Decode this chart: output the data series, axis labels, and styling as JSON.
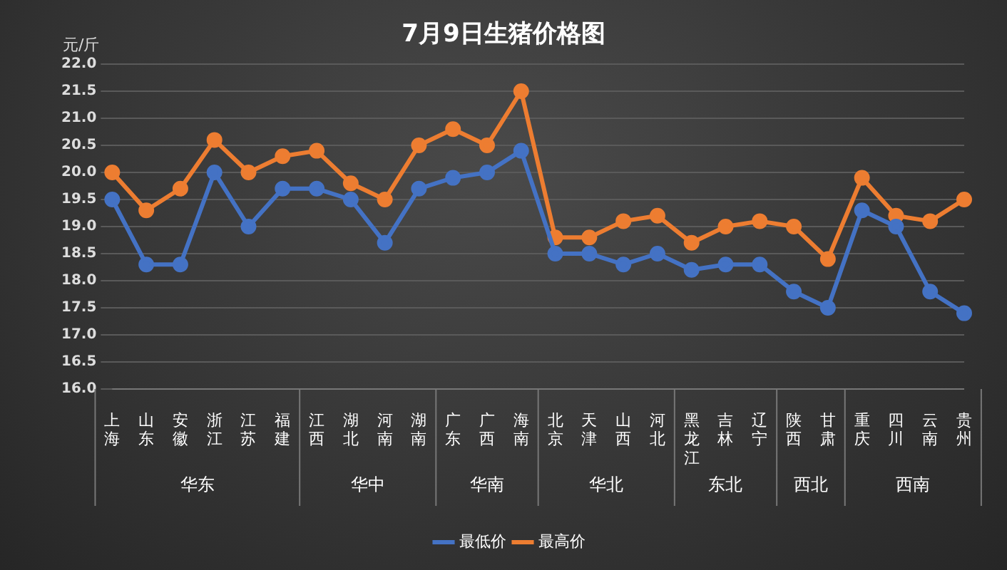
{
  "chart_data": {
    "type": "line",
    "title": "7月9日生猪价格图",
    "ylabel": "元/斤",
    "categories": [
      "上海",
      "山东",
      "安徽",
      "浙江",
      "江苏",
      "福建",
      "江西",
      "湖北",
      "河南",
      "湖南",
      "广东",
      "广西",
      "海南",
      "北京",
      "天津",
      "山西",
      "河北",
      "黑龙江",
      "吉林",
      "辽宁",
      "陕西",
      "甘肃",
      "重庆",
      "四川",
      "云南",
      "贵州"
    ],
    "series": [
      {
        "name": "最低价",
        "color": "#4472c4",
        "values": [
          19.5,
          18.3,
          18.3,
          20.0,
          19.0,
          19.7,
          19.7,
          19.5,
          18.7,
          19.7,
          19.9,
          20.0,
          20.4,
          18.5,
          18.5,
          18.3,
          18.5,
          18.2,
          18.3,
          18.3,
          17.8,
          17.5,
          19.3,
          19.0,
          17.8,
          17.4
        ]
      },
      {
        "name": "最高价",
        "color": "#ed7d31",
        "values": [
          20.0,
          19.3,
          19.7,
          20.6,
          20.0,
          20.3,
          20.4,
          19.8,
          19.5,
          20.5,
          20.8,
          20.5,
          21.5,
          18.8,
          18.8,
          19.1,
          19.2,
          18.7,
          19.0,
          19.1,
          19.0,
          18.4,
          19.9,
          19.2,
          19.1,
          19.5
        ]
      }
    ],
    "ylim": [
      16.0,
      22.0
    ],
    "yticks": [
      {
        "value": 16,
        "label": "16.0"
      },
      {
        "value": 16.5,
        "label": "16.5"
      },
      {
        "value": 17,
        "label": "17.0"
      },
      {
        "value": 17.5,
        "label": "17.5"
      },
      {
        "value": 18,
        "label": "18.0"
      },
      {
        "value": 18.5,
        "label": "18.5"
      },
      {
        "value": 19,
        "label": "19.0"
      },
      {
        "value": 19.5,
        "label": "19.5"
      },
      {
        "value": 20,
        "label": "20.0"
      },
      {
        "value": 20.5,
        "label": "20.5"
      },
      {
        "value": 21,
        "label": "21.0"
      },
      {
        "value": 21.5,
        "label": "21.5"
      },
      {
        "value": 22,
        "label": "22.0"
      }
    ],
    "annotations": [
      "华东",
      "华中",
      "华南",
      "华北",
      "东北",
      "西北",
      "西南"
    ],
    "grid": "y",
    "legend": "bottom",
    "marker": "circle",
    "line_style": "solid"
  }
}
